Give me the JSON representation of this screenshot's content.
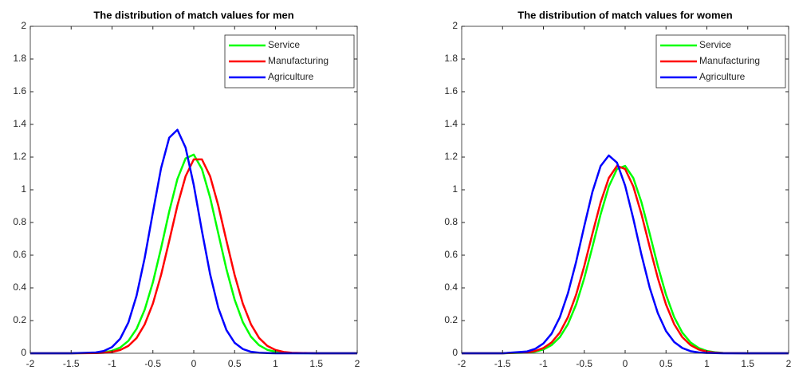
{
  "chart_data": [
    {
      "type": "line",
      "title": "The distribution of match values for men",
      "x": [
        -2,
        -1.5,
        -1.2,
        -1.1,
        -1.0,
        -0.9,
        -0.8,
        -0.7,
        -0.6,
        -0.5,
        -0.4,
        -0.3,
        -0.2,
        -0.1,
        0,
        0.1,
        0.2,
        0.3,
        0.4,
        0.5,
        0.6,
        0.7,
        0.8,
        0.9,
        1.0,
        1.1,
        1.2,
        1.5,
        2
      ],
      "series": [
        {
          "name": "Service",
          "color": "#00ff00",
          "values": [
            0,
            0,
            0.002,
            0.006,
            0.015,
            0.035,
            0.076,
            0.149,
            0.267,
            0.434,
            0.643,
            0.868,
            1.066,
            1.192,
            1.215,
            1.127,
            0.953,
            0.733,
            0.514,
            0.328,
            0.191,
            0.101,
            0.049,
            0.021,
            0.009,
            0.003,
            0.001,
            0,
            0
          ]
        },
        {
          "name": "Manufacturing",
          "color": "#ff0000",
          "values": [
            0,
            0,
            0.001,
            0.003,
            0.008,
            0.02,
            0.045,
            0.093,
            0.177,
            0.304,
            0.479,
            0.688,
            0.904,
            1.083,
            1.186,
            1.186,
            1.083,
            0.904,
            0.688,
            0.479,
            0.304,
            0.177,
            0.093,
            0.045,
            0.02,
            0.008,
            0.003,
            0,
            0
          ]
        },
        {
          "name": "Agriculture",
          "color": "#0000ff",
          "values": [
            0,
            0,
            0.005,
            0.014,
            0.038,
            0.089,
            0.188,
            0.352,
            0.584,
            0.862,
            1.132,
            1.319,
            1.367,
            1.258,
            1.029,
            0.748,
            0.484,
            0.278,
            0.142,
            0.064,
            0.026,
            0.009,
            0.003,
            0.001,
            0,
            0,
            0,
            0,
            0
          ]
        }
      ],
      "xlim": [
        -2,
        2
      ],
      "ylim": [
        0,
        2
      ],
      "xticks": [
        -2,
        -1.5,
        -1,
        -0.5,
        0,
        0.5,
        1,
        1.5,
        2
      ],
      "yticks": [
        0,
        0.2,
        0.4,
        0.6,
        0.8,
        1,
        1.2,
        1.4,
        1.6,
        1.8,
        2
      ],
      "legend": "upper right"
    },
    {
      "type": "line",
      "title": "The distribution of match values for women",
      "x": [
        -2,
        -1.5,
        -1.2,
        -1.1,
        -1.0,
        -0.9,
        -0.8,
        -0.7,
        -0.6,
        -0.5,
        -0.4,
        -0.3,
        -0.2,
        -0.1,
        0,
        0.1,
        0.2,
        0.3,
        0.4,
        0.5,
        0.6,
        0.7,
        0.8,
        0.9,
        1.0,
        1.1,
        1.2,
        1.5,
        2
      ],
      "series": [
        {
          "name": "Service",
          "color": "#00ff00",
          "values": [
            0,
            0,
            0.004,
            0.01,
            0.023,
            0.05,
            0.098,
            0.178,
            0.298,
            0.46,
            0.651,
            0.85,
            1.02,
            1.127,
            1.146,
            1.072,
            0.923,
            0.732,
            0.534,
            0.358,
            0.221,
            0.126,
            0.066,
            0.032,
            0.014,
            0.006,
            0.002,
            0,
            0
          ]
        },
        {
          "name": "Manufacturing",
          "color": "#ff0000",
          "values": [
            0,
            0,
            0.006,
            0.014,
            0.032,
            0.066,
            0.126,
            0.221,
            0.358,
            0.534,
            0.732,
            0.923,
            1.072,
            1.146,
            1.127,
            1.02,
            0.85,
            0.651,
            0.46,
            0.298,
            0.178,
            0.098,
            0.05,
            0.023,
            0.01,
            0.004,
            0.001,
            0,
            0
          ]
        },
        {
          "name": "Agriculture",
          "color": "#0000ff",
          "values": [
            0,
            0,
            0.011,
            0.027,
            0.06,
            0.12,
            0.219,
            0.367,
            0.559,
            0.778,
            0.988,
            1.145,
            1.21,
            1.166,
            1.025,
            0.823,
            0.602,
            0.402,
            0.245,
            0.136,
            0.069,
            0.032,
            0.013,
            0.005,
            0.002,
            0.001,
            0,
            0,
            0
          ]
        }
      ],
      "xlim": [
        -2,
        2
      ],
      "ylim": [
        0,
        2
      ],
      "xticks": [
        -2,
        -1.5,
        -1,
        -0.5,
        0,
        0.5,
        1,
        1.5,
        2
      ],
      "yticks": [
        0,
        0.2,
        0.4,
        0.6,
        0.8,
        1,
        1.2,
        1.4,
        1.6,
        1.8,
        2
      ],
      "legend": "upper right"
    }
  ]
}
